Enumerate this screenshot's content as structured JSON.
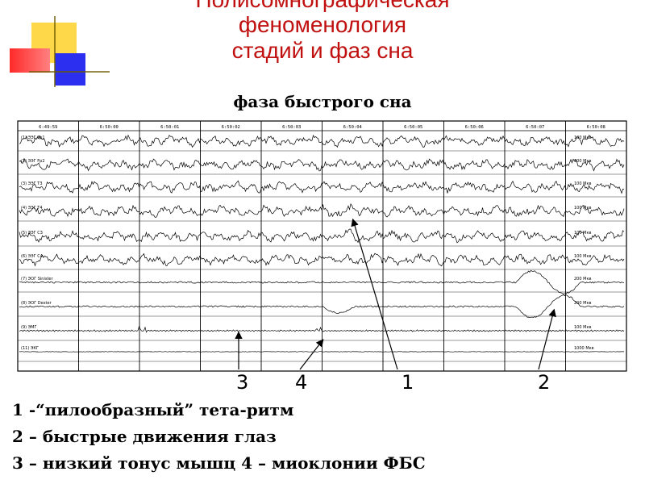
{
  "title_lines": [
    "Полисомнографическая",
    "феноменология",
    "стадий и фаз сна"
  ],
  "subtitle": "фаза быстрого сна",
  "recording": {
    "timestamps": [
      "6:49:59",
      "6:50:00",
      "6:50:01",
      "6:50:02",
      "6:50:03",
      "6:50:04",
      "6:50:05",
      "6:50:06",
      "6:50:07",
      "6:50:08"
    ],
    "channels": [
      "(1) ЭЭГ Fp1",
      "(2) ЭЭГ Fp2",
      "(3) ЭЭГ T3",
      "(4) ЭЭГ T4",
      "(5) ЭЭГ C3",
      "(6) ЭЭГ C4",
      "(7) ЭОГ Sinister",
      "(8) ЭОГ Dexter",
      "(9) ЭМГ",
      "(11) ЭКГ"
    ],
    "scale_labels": [
      "100 Мкв",
      "100 Мкв",
      "100 Мкв",
      "100 Мкв",
      "100 Мкв",
      "100 Мкв",
      "200 Мкв",
      "200 Мкв",
      "100 Мкв",
      "1000 Мкв"
    ]
  },
  "callouts": [
    "3",
    "4",
    "1",
    "2"
  ],
  "legend": [
    "1 -“пилообразный” тета-ритм",
    "2 – быстрые движения глаз",
    "3 – низкий тонус мышц 4 – миоклонии ФБС"
  ]
}
